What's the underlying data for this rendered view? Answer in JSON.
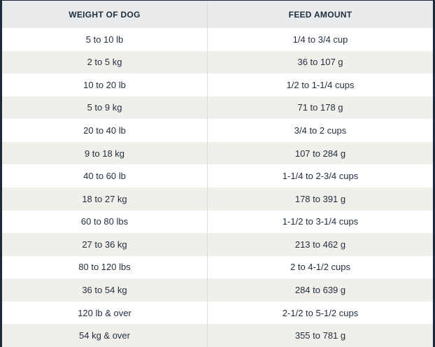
{
  "table": {
    "header": [
      "WEIGHT OF DOG",
      "FEED AMOUNT"
    ],
    "rows": [
      [
        "5 to 10 lb",
        "1/4 to 3/4 cup"
      ],
      [
        "2 to 5 kg",
        "36 to 107 g"
      ],
      [
        "10 to 20 lb",
        "1/2 to 1-1/4 cups"
      ],
      [
        "5 to 9 kg",
        "71 to 178 g"
      ],
      [
        "20 to 40 lb",
        "3/4 to 2 cups"
      ],
      [
        "9 to 18 kg",
        "107 to 284 g"
      ],
      [
        "40 to 60 lb",
        "1-1/4 to 2-3/4 cups"
      ],
      [
        "18 to 27 kg",
        "178 to 391 g"
      ],
      [
        "60 to 80 lbs",
        "1-1/2 to 3-1/4 cups"
      ],
      [
        "27 to 36 kg",
        "213 to 462 g"
      ],
      [
        "80 to 120 lbs",
        "2 to 4-1/2 cups"
      ],
      [
        "36 to 54 kg",
        "284 to 639 g"
      ],
      [
        "120 lb & over",
        "2-1/2 to 5-1/2 cups"
      ],
      [
        "54 kg & over",
        "355 to 781 g"
      ]
    ]
  }
}
